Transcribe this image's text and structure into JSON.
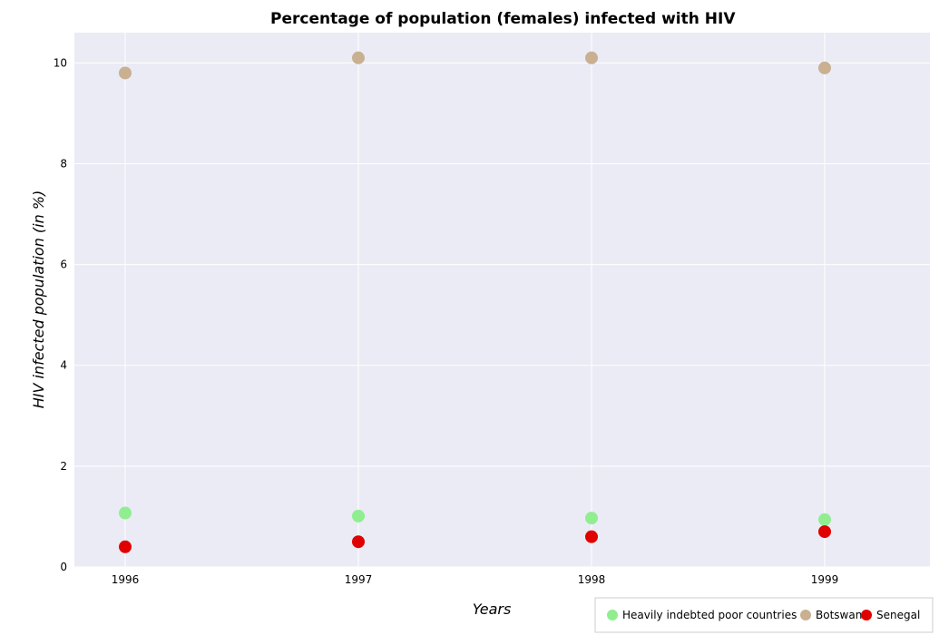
{
  "chart_data": {
    "type": "scatter",
    "title": "Percentage of population (females) infected with HIV",
    "xlabel": "Years",
    "ylabel": "HIV infected population (in %)",
    "categories": [
      "1996",
      "1997",
      "1998",
      "1999"
    ],
    "ylim": [
      0,
      10.6
    ],
    "yticks": [
      "0",
      "2",
      "4",
      "6",
      "8",
      "10"
    ],
    "grid": true,
    "legend_position": "bottom-right",
    "series": [
      {
        "name": "Heavily indebted poor countries",
        "color": "#90ee90",
        "values": [
          1.07,
          1.01,
          0.97,
          0.94
        ]
      },
      {
        "name": "Botswana",
        "color": "#c8b090",
        "values": [
          9.8,
          10.1,
          10.1,
          9.9
        ]
      },
      {
        "name": "Senegal",
        "color": "#e00000",
        "values": [
          0.4,
          0.5,
          0.6,
          0.7
        ]
      }
    ]
  }
}
